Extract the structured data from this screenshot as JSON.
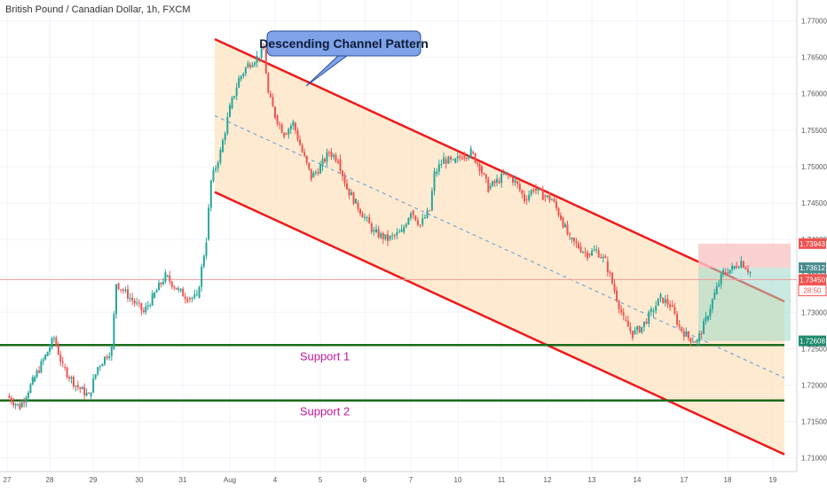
{
  "header": {
    "symbol_title": "British Pound / Canadian Dollar, 1h, FXCM"
  },
  "annotation": {
    "label": "Descending Channel Pattern"
  },
  "supports": [
    {
      "label": "Support 1",
      "price": 1.7255
    },
    {
      "label": "Support 2",
      "price": 1.7179
    }
  ],
  "price_badges": [
    {
      "label": "1.73943",
      "price": 1.73943,
      "color": "#ef5350"
    },
    {
      "label": "1.73612",
      "price": 1.73612,
      "color": "#4a8d8f"
    },
    {
      "label": "1.73450",
      "price": 1.7345,
      "color": "#ef5350"
    },
    {
      "label": "28:50",
      "price": 1.733,
      "color": "#ffffff"
    },
    {
      "label": "1.72608",
      "price": 1.72608,
      "color": "#1e8a6e"
    }
  ],
  "colors": {
    "channel_line": "#f0191a",
    "channel_fill": "#fde3c0",
    "support_line": "#1b6a1b",
    "support_text": "#c0189b",
    "up_candle": "#26a69a",
    "down_candle": "#ef5350",
    "callout_fill": "#7fa3e8",
    "midline": "#5b9bd5"
  },
  "chart_data": {
    "type": "candlestick",
    "y_axis": {
      "ticks": [
        "1.77000",
        "1.76500",
        "1.76000",
        "1.75500",
        "1.75000",
        "1.74500",
        "1.74000",
        "1.73500",
        "1.73000",
        "1.72500",
        "1.72000",
        "1.71500",
        "1.71000"
      ],
      "ylim": [
        1.7085,
        1.7725
      ]
    },
    "x_axis": {
      "ticks": [
        "27",
        "28",
        "29",
        "30",
        "31",
        "Aug",
        "4",
        "5",
        "6",
        "7",
        "10",
        "11",
        "12",
        "13",
        "14",
        "17",
        "18",
        "19"
      ]
    },
    "price_path": [
      [
        0,
        1.7185
      ],
      [
        0.3,
        1.717
      ],
      [
        0.6,
        1.7205
      ],
      [
        0.9,
        1.724
      ],
      [
        1.1,
        1.7265
      ],
      [
        1.3,
        1.7225
      ],
      [
        1.6,
        1.72
      ],
      [
        1.9,
        1.7185
      ],
      [
        2.1,
        1.7225
      ],
      [
        2.4,
        1.725
      ],
      [
        2.5,
        1.734
      ],
      [
        2.8,
        1.732
      ],
      [
        3.1,
        1.73
      ],
      [
        3.3,
        1.732
      ],
      [
        3.6,
        1.735
      ],
      [
        3.9,
        1.733
      ],
      [
        4.1,
        1.732
      ],
      [
        4.3,
        1.732
      ],
      [
        4.5,
        1.74
      ],
      [
        4.6,
        1.748
      ],
      [
        4.8,
        1.752
      ],
      [
        5.0,
        1.758
      ],
      [
        5.2,
        1.762
      ],
      [
        5.4,
        1.764
      ],
      [
        5.6,
        1.765
      ],
      [
        5.75,
        1.766
      ],
      [
        5.85,
        1.76
      ],
      [
        6.0,
        1.757
      ],
      [
        6.2,
        1.7545
      ],
      [
        6.4,
        1.756
      ],
      [
        6.6,
        1.752
      ],
      [
        6.8,
        1.7485
      ],
      [
        7.0,
        1.75
      ],
      [
        7.2,
        1.752
      ],
      [
        7.4,
        1.751
      ],
      [
        7.6,
        1.747
      ],
      [
        7.8,
        1.745
      ],
      [
        8.0,
        1.743
      ],
      [
        8.2,
        1.741
      ],
      [
        8.5,
        1.74
      ],
      [
        8.8,
        1.741
      ],
      [
        9.0,
        1.744
      ],
      [
        9.2,
        1.742
      ],
      [
        9.4,
        1.744
      ],
      [
        9.5,
        1.749
      ],
      [
        9.7,
        1.751
      ],
      [
        9.9,
        1.7505
      ],
      [
        10.1,
        1.7515
      ],
      [
        10.3,
        1.752
      ],
      [
        10.5,
        1.75
      ],
      [
        10.7,
        1.747
      ],
      [
        10.9,
        1.748
      ],
      [
        11.1,
        1.749
      ],
      [
        11.3,
        1.748
      ],
      [
        11.5,
        1.7455
      ],
      [
        11.7,
        1.747
      ],
      [
        11.9,
        1.746
      ],
      [
        12.1,
        1.7455
      ],
      [
        12.3,
        1.743
      ],
      [
        12.5,
        1.74
      ],
      [
        12.7,
        1.739
      ],
      [
        12.9,
        1.738
      ],
      [
        13.1,
        1.7385
      ],
      [
        13.3,
        1.737
      ],
      [
        13.5,
        1.733
      ],
      [
        13.7,
        1.729
      ],
      [
        13.9,
        1.727
      ],
      [
        14.1,
        1.728
      ],
      [
        14.3,
        1.73
      ],
      [
        14.5,
        1.732
      ],
      [
        14.7,
        1.731
      ],
      [
        14.9,
        1.728
      ],
      [
        15.1,
        1.7265
      ],
      [
        15.3,
        1.726
      ],
      [
        15.5,
        1.729
      ],
      [
        15.7,
        1.7325
      ],
      [
        15.9,
        1.7355
      ],
      [
        16.1,
        1.736
      ],
      [
        16.3,
        1.737
      ],
      [
        16.5,
        1.7355
      ]
    ]
  }
}
